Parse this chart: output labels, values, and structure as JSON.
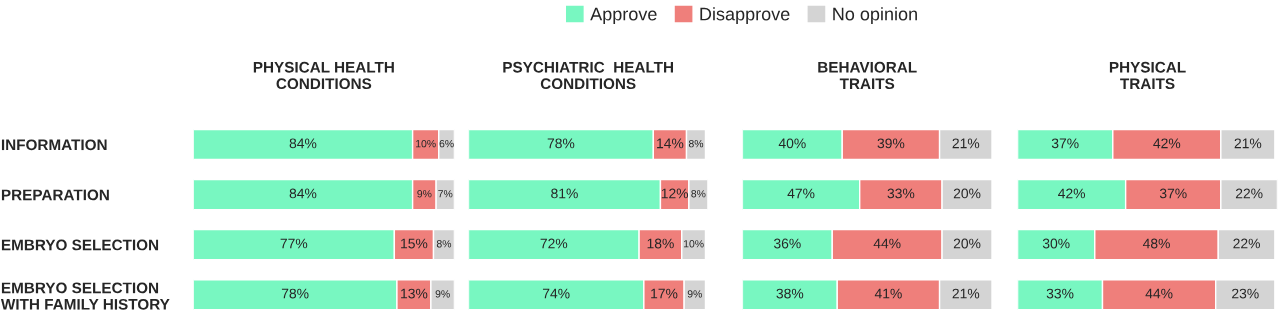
{
  "chart_data": [
    {
      "type": "bar",
      "orientation": "horizontal",
      "stacked": true,
      "title": "PHYSICAL HEALTH\nCONDITIONS",
      "categories": [
        "INFORMATION",
        "PREPARATION",
        "EMBRYO SELECTION",
        "EMBRYO SELECTION\nWITH FAMILY HISTORY"
      ],
      "xlim": [
        0,
        100
      ],
      "tick_labels": "y",
      "legend": "top",
      "series": [
        {
          "name": "Approve",
          "color": "#78f7c1",
          "values": [
            84,
            84,
            77,
            78
          ],
          "value_labels": [
            "84%",
            "84%",
            "77%",
            "78%"
          ]
        },
        {
          "name": "Disapprove",
          "color": "#ef7f7b",
          "values": [
            10,
            9,
            15,
            13
          ],
          "value_labels": [
            "10%",
            "9%",
            "15%",
            "13%"
          ]
        },
        {
          "name": "No opinion",
          "color": "#d4d4d4",
          "values": [
            6,
            7,
            8,
            9
          ],
          "value_labels": [
            "6%",
            "7%",
            "8%",
            "9%"
          ]
        }
      ]
    },
    {
      "type": "bar",
      "orientation": "horizontal",
      "stacked": true,
      "title": "PSYCHIATRIC  HEALTH\nCONDITIONS",
      "xlim": [
        0,
        101
      ],
      "tick_labels": false,
      "series": [
        {
          "color": "#78f7c1",
          "values": [
            78,
            81,
            72,
            74
          ],
          "value_labels": [
            "78%",
            "81%",
            "72%",
            "74%"
          ]
        },
        {
          "color": "#ef7f7b",
          "values": [
            14,
            12,
            18,
            17
          ],
          "value_labels": [
            "14%",
            "12%",
            "18%",
            "17%"
          ]
        },
        {
          "color": "#d4d4d4",
          "values": [
            8,
            8,
            10,
            9
          ],
          "value_labels": [
            "8%",
            "8%",
            "10%",
            "9%"
          ]
        }
      ]
    },
    {
      "type": "bar",
      "orientation": "horizontal",
      "stacked": true,
      "title": "BEHAVIORAL\nTRAITS",
      "xlim": [
        0,
        100
      ],
      "tick_labels": false,
      "series": [
        {
          "color": "#78f7c1",
          "values": [
            40,
            47,
            36,
            38
          ],
          "value_labels": [
            "40%",
            "47%",
            "36%",
            "38%"
          ]
        },
        {
          "color": "#ef7f7b",
          "values": [
            39,
            33,
            44,
            41
          ],
          "value_labels": [
            "39%",
            "33%",
            "44%",
            "41%"
          ]
        },
        {
          "color": "#d4d4d4",
          "values": [
            21,
            20,
            20,
            21
          ],
          "value_labels": [
            "21%",
            "20%",
            "20%",
            "21%"
          ]
        }
      ]
    },
    {
      "type": "bar",
      "orientation": "horizontal",
      "stacked": true,
      "title": "PHYSICAL\nTRAITS",
      "xlim": [
        0,
        101
      ],
      "tick_labels": false,
      "series": [
        {
          "color": "#78f7c1",
          "values": [
            37,
            42,
            30,
            33
          ],
          "value_labels": [
            "37%",
            "42%",
            "30%",
            "33%"
          ]
        },
        {
          "color": "#ef7f7b",
          "values": [
            42,
            37,
            48,
            44
          ],
          "value_labels": [
            "42%",
            "37%",
            "48%",
            "44%"
          ]
        },
        {
          "color": "#d4d4d4",
          "values": [
            21,
            22,
            22,
            23
          ],
          "value_labels": [
            "21%",
            "22%",
            "22%",
            "23%"
          ]
        }
      ]
    }
  ]
}
